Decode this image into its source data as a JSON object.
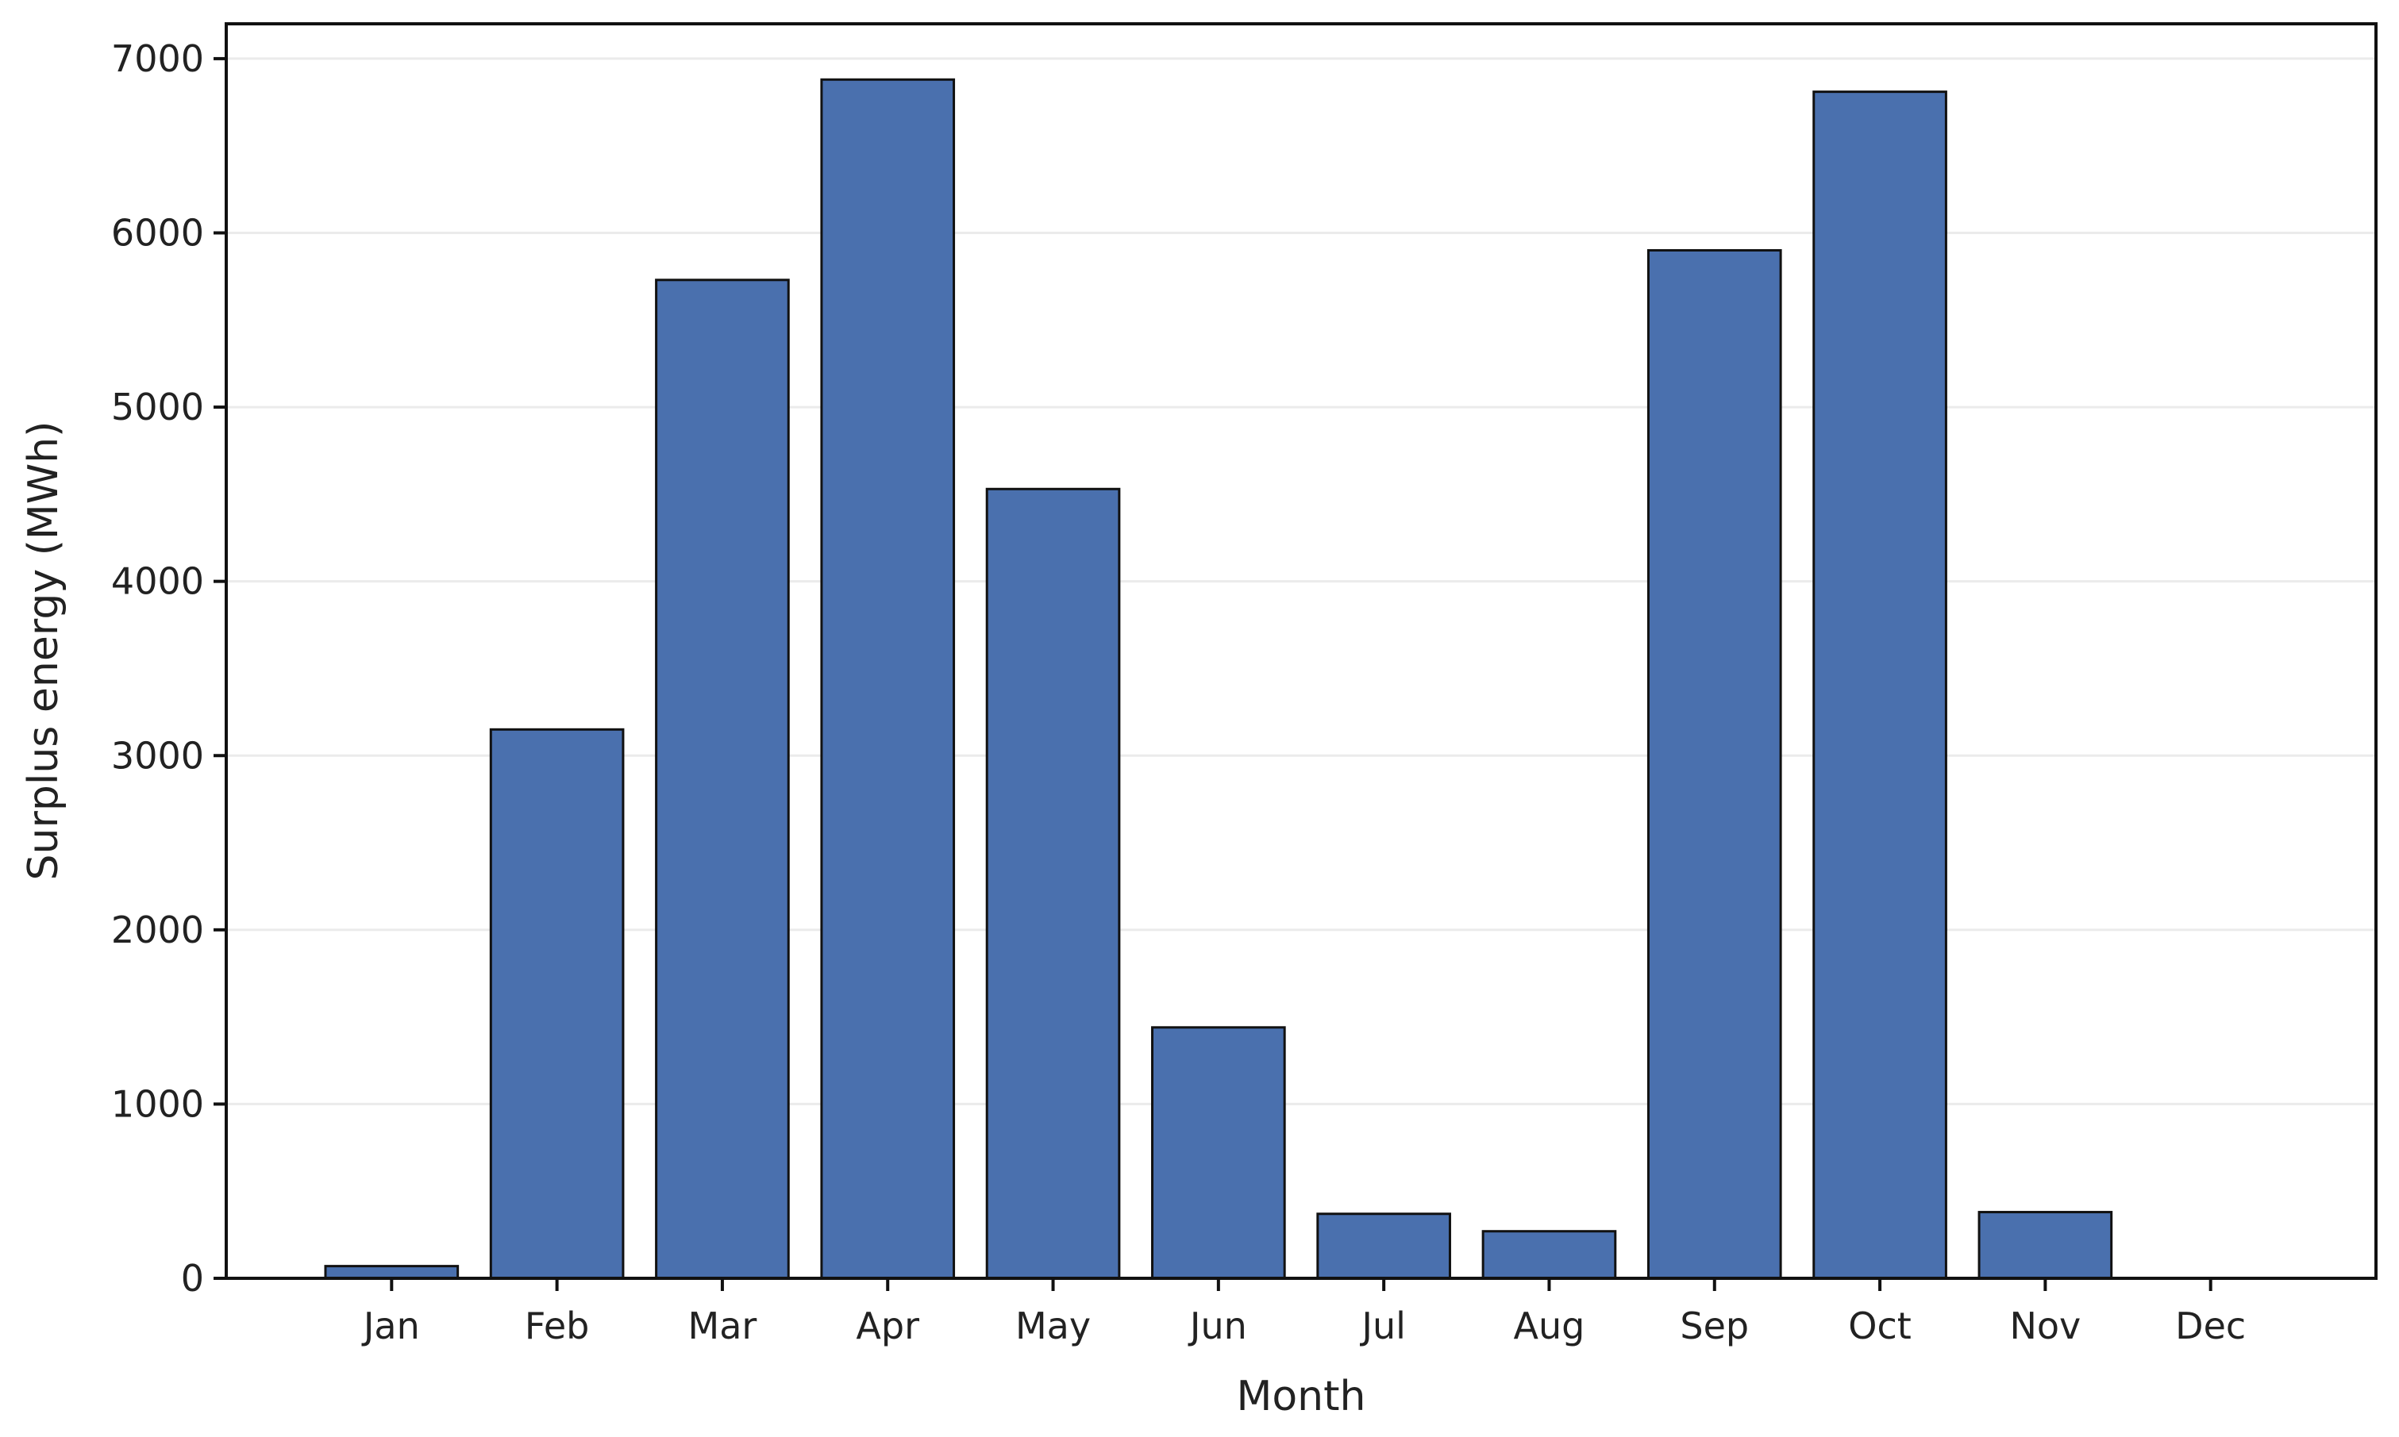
{
  "chart_data": {
    "type": "bar",
    "title": "",
    "xlabel": "Month",
    "ylabel": "Surplus energy (MWh)",
    "categories": [
      "Jan",
      "Feb",
      "Mar",
      "Apr",
      "May",
      "Jun",
      "Jul",
      "Aug",
      "Sep",
      "Oct",
      "Nov",
      "Dec"
    ],
    "values": [
      70,
      3150,
      5730,
      6880,
      4530,
      1440,
      370,
      270,
      5900,
      6810,
      380,
      0
    ],
    "ylim": [
      0,
      7200
    ],
    "yticks": [
      0,
      1000,
      2000,
      3000,
      4000,
      5000,
      6000,
      7000
    ],
    "ytick_labels": [
      "0",
      "1000",
      "2000",
      "3000",
      "4000",
      "5000",
      "6000",
      "7000"
    ],
    "grid": "horizontal",
    "legend": "none",
    "colors": {
      "bar_fill": "#4a70ae",
      "bar_edge": "#111111",
      "grid": "#ebebeb",
      "frame": "#111111"
    }
  }
}
